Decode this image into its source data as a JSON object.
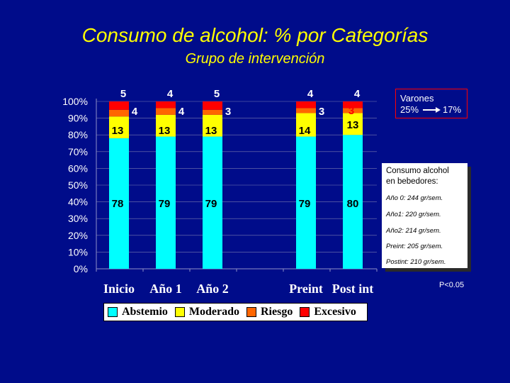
{
  "title": "Consumo de alcohol: % por Categorías",
  "subtitle": "Grupo de intervención",
  "note_varones": {
    "label": "Varones",
    "from": "25%",
    "to": "17%"
  },
  "consumo_box": {
    "title_line1": "Consumo alcohol",
    "title_line2": "en bebedores:",
    "stats": [
      "Año 0: 244 gr/sem.",
      "Año1: 220 gr/sem.",
      "Año2: 214 gr/sem.",
      "Preint: 205 gr/sem.",
      "Postint: 210 gr/sem."
    ]
  },
  "p_value": "P<0.05",
  "colors": {
    "background": "#000c8a",
    "Abstemio": "#00ffff",
    "Moderado": "#ffff00",
    "Riesgo": "#ff6600",
    "Excesivo": "#ff0000"
  },
  "chart_data": {
    "type": "bar",
    "stacked": true,
    "title": "Consumo de alcohol: % por Categorías",
    "subtitle": "Grupo de intervención",
    "categories": [
      "Inicio",
      "Año 1",
      "Año 2",
      "Preint",
      "Post int"
    ],
    "yticks": [
      "0%",
      "10%",
      "20%",
      "30%",
      "40%",
      "50%",
      "60%",
      "70%",
      "80%",
      "90%",
      "100%"
    ],
    "ylim": [
      0,
      100
    ],
    "series": [
      {
        "name": "Abstemio",
        "values": [
          78,
          79,
          79,
          79,
          80
        ],
        "labels": [
          "78",
          "79",
          "79",
          "79",
          "80"
        ]
      },
      {
        "name": "Moderado",
        "values": [
          13,
          13,
          13,
          14,
          13
        ],
        "labels": [
          "13",
          "13",
          "13",
          "14",
          "13"
        ]
      },
      {
        "name": "Riesgo",
        "values": [
          4,
          4,
          3,
          3,
          3
        ],
        "labels": [
          "4",
          "4",
          "3",
          "3",
          "3"
        ]
      },
      {
        "name": "Excesivo",
        "values": [
          5,
          4,
          5,
          4,
          4
        ],
        "labels": [
          "5",
          "4",
          "5",
          "4",
          "4"
        ]
      }
    ]
  }
}
